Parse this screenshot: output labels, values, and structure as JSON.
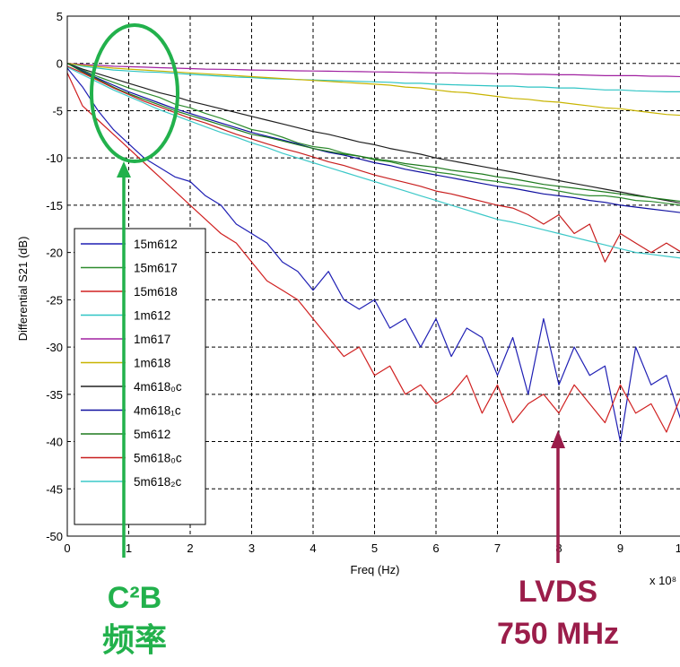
{
  "chart_data": {
    "type": "line",
    "title": "",
    "xlabel": "Freq (Hz)",
    "ylabel": "Differential S21 (dB)",
    "x_multiplier": "x 10⁸",
    "xlim": [
      0,
      10
    ],
    "ylim": [
      -50,
      5
    ],
    "xticks": [
      "0",
      "1",
      "2",
      "3",
      "4",
      "5",
      "6",
      "7",
      "8",
      "9",
      "10"
    ],
    "yticks": [
      "5",
      "0",
      "-5",
      "-10",
      "-15",
      "-20",
      "-25",
      "-30",
      "-35",
      "-40",
      "-45",
      "-50"
    ],
    "grid": true,
    "legend_position": "left",
    "x": [
      0,
      0.25,
      0.5,
      0.75,
      1,
      1.25,
      1.5,
      1.75,
      2,
      2.25,
      2.5,
      2.75,
      3,
      3.25,
      3.5,
      3.75,
      4,
      4.25,
      4.5,
      4.75,
      5,
      5.25,
      5.5,
      5.75,
      6,
      6.25,
      6.5,
      6.75,
      7,
      7.25,
      7.5,
      7.75,
      8,
      8.25,
      8.5,
      8.75,
      9,
      9.25,
      9.5,
      9.75,
      10
    ],
    "series": [
      {
        "name": "15m612",
        "color": "#1f1fb4",
        "values": [
          -0.5,
          -2.5,
          -5,
          -7,
          -8.5,
          -10,
          -11,
          -12,
          -12.5,
          -14,
          -15,
          -17,
          -18,
          -19,
          -21,
          -22,
          -24,
          -22,
          -25,
          -26,
          -25,
          -28,
          -27,
          -30,
          -27,
          -31,
          -28,
          -29,
          -33,
          -29,
          -35,
          -27,
          -34,
          -30,
          -33,
          -32,
          -40,
          -30,
          -34,
          -33,
          -38
        ]
      },
      {
        "name": "15m617",
        "color": "#2e8b2e",
        "values": [
          0,
          -0.7,
          -1.4,
          -2,
          -2.6,
          -3.1,
          -3.6,
          -4.3,
          -4.7,
          -5.3,
          -5.8,
          -6.4,
          -7,
          -7.3,
          -7.8,
          -8.4,
          -8.8,
          -9,
          -9.5,
          -9.8,
          -10.2,
          -10.4,
          -10.8,
          -11.2,
          -11.5,
          -11.7,
          -12,
          -12.3,
          -12.5,
          -12.8,
          -13,
          -13.2,
          -13.5,
          -13.8,
          -14,
          -14,
          -14.2,
          -14.5,
          -14.6,
          -14.8,
          -15
        ]
      },
      {
        "name": "15m618",
        "color": "#d02020",
        "values": [
          -1,
          -4.5,
          -6,
          -7.5,
          -9,
          -10.5,
          -12,
          -13.5,
          -15,
          -16.5,
          -18,
          -19,
          -21,
          -23,
          -24,
          -25,
          -27,
          -29,
          -31,
          -30,
          -33,
          -32,
          -35,
          -34,
          -36,
          -35,
          -33,
          -37,
          -34,
          -38,
          -36,
          -35,
          -37,
          -34,
          -36,
          -38,
          -34,
          -37,
          -36,
          -39,
          -35
        ]
      },
      {
        "name": "1m612",
        "color": "#2ec4c4",
        "values": [
          0,
          -0.3,
          -0.5,
          -0.7,
          -0.8,
          -0.9,
          -0.95,
          -1.05,
          -1.15,
          -1.25,
          -1.35,
          -1.45,
          -1.5,
          -1.6,
          -1.65,
          -1.7,
          -1.75,
          -1.8,
          -1.85,
          -1.9,
          -1.95,
          -2,
          -2.1,
          -2.1,
          -2.2,
          -2.25,
          -2.3,
          -2.35,
          -2.4,
          -2.4,
          -2.5,
          -2.5,
          -2.6,
          -2.6,
          -2.7,
          -2.8,
          -2.8,
          -2.9,
          -2.95,
          -3,
          -3
        ]
      },
      {
        "name": "1m617",
        "color": "#a020a0",
        "values": [
          0,
          -0.1,
          -0.2,
          -0.3,
          -0.35,
          -0.4,
          -0.45,
          -0.5,
          -0.55,
          -0.6,
          -0.62,
          -0.65,
          -0.7,
          -0.72,
          -0.75,
          -0.78,
          -0.8,
          -0.82,
          -0.85,
          -0.87,
          -0.9,
          -0.92,
          -0.95,
          -0.97,
          -1,
          -1,
          -1.05,
          -1.05,
          -1.1,
          -1.1,
          -1.15,
          -1.15,
          -1.2,
          -1.2,
          -1.25,
          -1.3,
          -1.3,
          -1.3,
          -1.35,
          -1.35,
          -1.4
        ]
      },
      {
        "name": "1m618",
        "color": "#c8b400",
        "values": [
          0,
          -0.2,
          -0.35,
          -0.5,
          -0.6,
          -0.7,
          -0.8,
          -0.9,
          -1,
          -1.1,
          -1.2,
          -1.3,
          -1.4,
          -1.5,
          -1.6,
          -1.7,
          -1.8,
          -1.9,
          -2,
          -2.1,
          -2.2,
          -2.3,
          -2.5,
          -2.6,
          -2.8,
          -3,
          -3.1,
          -3.3,
          -3.5,
          -3.7,
          -3.8,
          -4,
          -4.1,
          -4.3,
          -4.5,
          -4.7,
          -4.8,
          -5,
          -5.2,
          -5.4,
          -5.5
        ]
      },
      {
        "name": "4m618₀c",
        "color": "#202020",
        "values": [
          0,
          -0.6,
          -1.1,
          -1.6,
          -2.1,
          -2.6,
          -3.1,
          -3.5,
          -4,
          -4.4,
          -4.8,
          -5.2,
          -5.6,
          -6,
          -6.4,
          -6.8,
          -7.2,
          -7.5,
          -7.9,
          -8.3,
          -8.6,
          -9,
          -9.3,
          -9.6,
          -10,
          -10.3,
          -10.6,
          -10.9,
          -11.2,
          -11.5,
          -11.8,
          -12.1,
          -12.4,
          -12.7,
          -13,
          -13.3,
          -13.6,
          -13.9,
          -14.2,
          -14.5,
          -14.8
        ]
      },
      {
        "name": "4m618₁c",
        "color": "#1010a0",
        "values": [
          0,
          -0.8,
          -1.6,
          -2.3,
          -3,
          -3.6,
          -4.2,
          -4.8,
          -5.3,
          -5.8,
          -6.3,
          -6.8,
          -7.3,
          -7.7,
          -8.1,
          -8.5,
          -9,
          -9.4,
          -9.7,
          -10.1,
          -10.5,
          -10.8,
          -11.2,
          -11.5,
          -11.8,
          -12.1,
          -12.4,
          -12.7,
          -13,
          -13.2,
          -13.5,
          -13.8,
          -14,
          -14.2,
          -14.5,
          -14.7,
          -15,
          -15.2,
          -15.4,
          -15.6,
          -15.8
        ]
      },
      {
        "name": "5m612",
        "color": "#1e7a1e",
        "values": [
          0,
          -0.9,
          -1.7,
          -2.5,
          -3.2,
          -3.8,
          -4.4,
          -5,
          -5.5,
          -6,
          -6.5,
          -7,
          -7.5,
          -7.8,
          -8.2,
          -8.6,
          -9,
          -9.3,
          -9.6,
          -9.8,
          -10.1,
          -10.3,
          -10.6,
          -10.8,
          -11,
          -11.3,
          -11.5,
          -11.7,
          -12,
          -12.2,
          -12.5,
          -12.8,
          -13,
          -13.2,
          -13.4,
          -13.6,
          -13.8,
          -14,
          -14.2,
          -14.4,
          -14.6
        ]
      },
      {
        "name": "5m618₀c",
        "color": "#c81e1e",
        "values": [
          -0.3,
          -1,
          -1.8,
          -2.6,
          -3.3,
          -4,
          -4.6,
          -5.2,
          -5.8,
          -6.3,
          -6.9,
          -7.5,
          -8,
          -8.5,
          -9,
          -9.4,
          -9.9,
          -10.4,
          -10.8,
          -11.3,
          -11.8,
          -12.2,
          -12.6,
          -13,
          -13.5,
          -13.8,
          -14.2,
          -14.6,
          -15,
          -15.3,
          -16,
          -17,
          -16,
          -18,
          -17,
          -21,
          -18,
          -19,
          -20,
          -19,
          -20
        ]
      },
      {
        "name": "5m618₂c",
        "color": "#3cc8c8",
        "values": [
          -0.4,
          -1.2,
          -2,
          -2.8,
          -3.5,
          -4.2,
          -4.9,
          -5.5,
          -6.1,
          -6.7,
          -7.3,
          -7.8,
          -8.4,
          -8.9,
          -9.5,
          -10,
          -10.5,
          -11,
          -11.5,
          -12,
          -12.5,
          -13,
          -13.5,
          -14,
          -14.5,
          -15,
          -15.5,
          -16,
          -16.5,
          -16.8,
          -17.2,
          -17.6,
          -18,
          -18.4,
          -18.8,
          -19.2,
          -19.6,
          -20,
          -20.2,
          -20.4,
          -20.6
        ]
      }
    ],
    "annotations": [
      {
        "text": "C²B",
        "color": "#22b14c"
      },
      {
        "text": "频率",
        "color": "#22b14c"
      },
      {
        "text": "LVDS",
        "color": "#9b1d4a"
      },
      {
        "text": "750 MHz",
        "color": "#9b1d4a"
      }
    ]
  }
}
